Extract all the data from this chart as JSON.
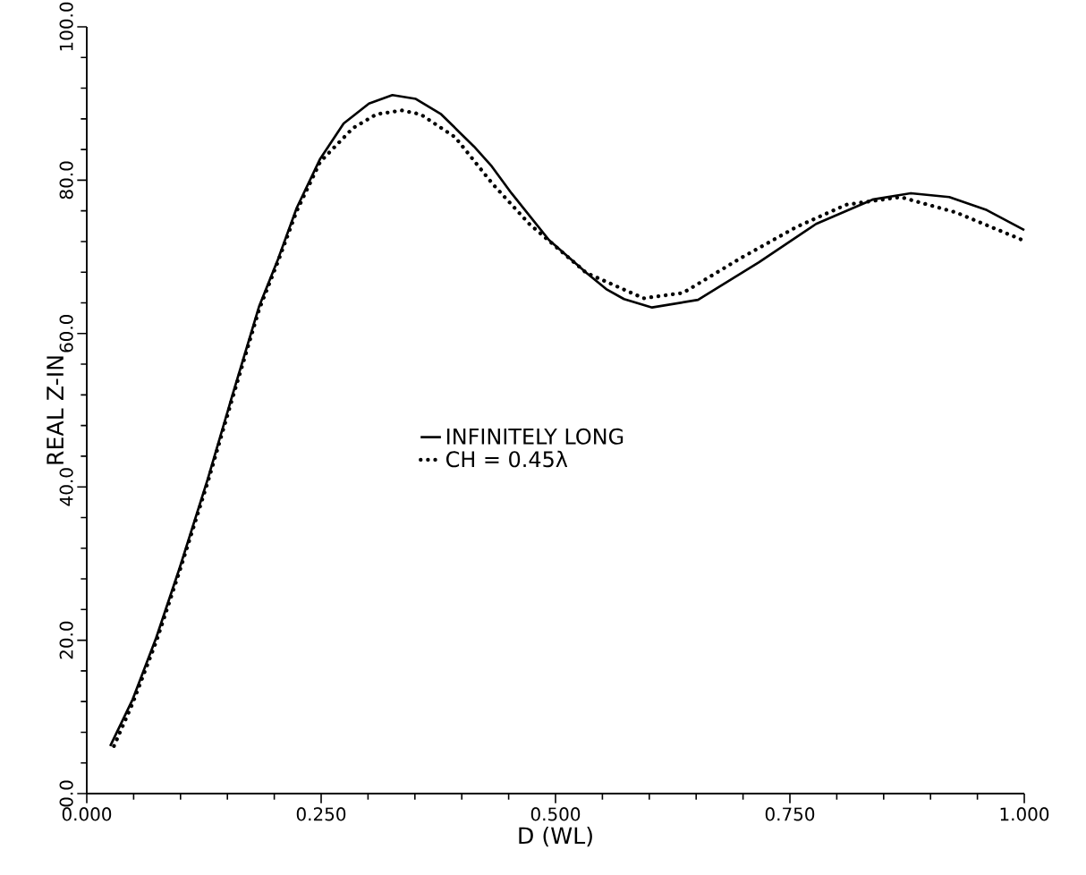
{
  "chart_data": {
    "type": "line",
    "xlabel": "D (WL)",
    "ylabel": "REAL Z-IN",
    "xlim": [
      0,
      1
    ],
    "ylim": [
      0,
      100
    ],
    "xticks": [
      {
        "value": 0,
        "label": "0.000"
      },
      {
        "value": 0.25,
        "label": "0.250"
      },
      {
        "value": 0.5,
        "label": "0.500"
      },
      {
        "value": 0.75,
        "label": "0.750"
      },
      {
        "value": 1,
        "label": "1.000"
      }
    ],
    "yticks": [
      {
        "value": 0,
        "label": "0.0"
      },
      {
        "value": 20,
        "label": "20.0"
      },
      {
        "value": 40,
        "label": "40.0"
      },
      {
        "value": 60,
        "label": "60.0"
      },
      {
        "value": 80,
        "label": "80.0"
      },
      {
        "value": 100,
        "label": "100.0"
      }
    ],
    "grid": false,
    "legend": "center",
    "series": [
      {
        "name": "INFINITELY LONG",
        "color": "#000000",
        "line_style": "solid",
        "x": [
          0.025,
          0.049,
          0.074,
          0.099,
          0.129,
          0.154,
          0.184,
          0.204,
          0.224,
          0.249,
          0.274,
          0.301,
          0.326,
          0.351,
          0.378,
          0.413,
          0.432,
          0.453,
          0.493,
          0.533,
          0.554,
          0.573,
          0.603,
          0.652,
          0.717,
          0.778,
          0.839,
          0.879,
          0.92,
          0.96,
          1.0
        ],
        "values": [
          6.2,
          12.3,
          20.3,
          29.4,
          41.0,
          51.4,
          63.6,
          69.7,
          76.4,
          82.8,
          87.4,
          90.0,
          91.1,
          90.6,
          88.6,
          84.4,
          81.8,
          78.3,
          72.2,
          67.9,
          65.8,
          64.5,
          63.4,
          64.4,
          69.3,
          74.3,
          77.5,
          78.3,
          77.8,
          76.1,
          73.5
        ]
      },
      {
        "name": "CH = 0.45λ",
        "color": "#000000",
        "line_style": "dotted",
        "x": [
          0.029,
          0.049,
          0.074,
          0.099,
          0.129,
          0.154,
          0.184,
          0.204,
          0.224,
          0.249,
          0.284,
          0.309,
          0.336,
          0.356,
          0.393,
          0.433,
          0.472,
          0.533,
          0.594,
          0.636,
          0.697,
          0.757,
          0.81,
          0.868,
          0.927,
          1.0
        ],
        "values": [
          6.2,
          11.8,
          19.8,
          29.0,
          40.6,
          51.0,
          63.2,
          69.4,
          76.0,
          82.4,
          86.8,
          88.6,
          89.1,
          88.6,
          85.6,
          79.5,
          74.3,
          67.9,
          64.6,
          65.3,
          69.8,
          73.9,
          76.8,
          77.8,
          75.8,
          72.1
        ]
      }
    ]
  }
}
